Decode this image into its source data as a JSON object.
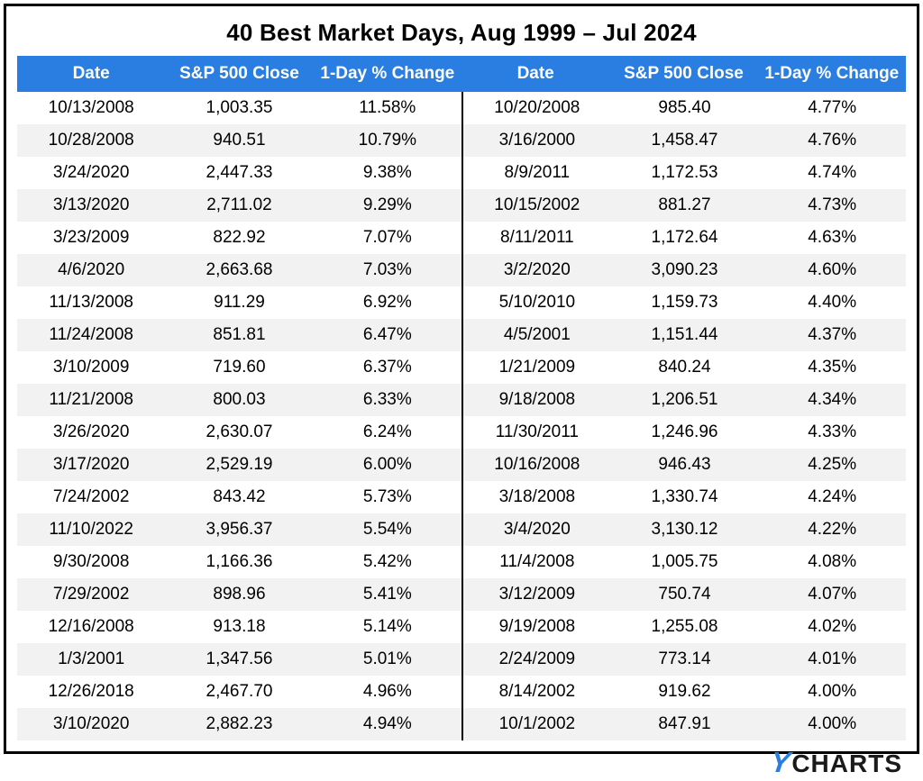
{
  "title": "40 Best Market Days, Aug 1999 – Jul 2024",
  "colors": {
    "header_bg": "#2a7de1",
    "header_text": "#ffffff",
    "row_alt_bg": "#f2f2f2",
    "row_bg": "#ffffff",
    "text": "#000000",
    "border": "#000000",
    "logo_accent": "#2a7de1",
    "logo_text": "#1a1a1a"
  },
  "font": {
    "title_size_pt": 20,
    "header_size_pt": 14,
    "cell_size_pt": 14,
    "weight_title": 700,
    "weight_header": 700,
    "weight_cell": 400
  },
  "columns": [
    "Date",
    "S&P 500 Close",
    "1-Day % Change",
    "Date",
    "S&P 500 Close",
    "1-Day % Change"
  ],
  "left_rows": [
    {
      "date": "10/13/2008",
      "close": "1,003.35",
      "change": "11.58%"
    },
    {
      "date": "10/28/2008",
      "close": "940.51",
      "change": "10.79%"
    },
    {
      "date": "3/24/2020",
      "close": "2,447.33",
      "change": "9.38%"
    },
    {
      "date": "3/13/2020",
      "close": "2,711.02",
      "change": "9.29%"
    },
    {
      "date": "3/23/2009",
      "close": "822.92",
      "change": "7.07%"
    },
    {
      "date": "4/6/2020",
      "close": "2,663.68",
      "change": "7.03%"
    },
    {
      "date": "11/13/2008",
      "close": "911.29",
      "change": "6.92%"
    },
    {
      "date": "11/24/2008",
      "close": "851.81",
      "change": "6.47%"
    },
    {
      "date": "3/10/2009",
      "close": "719.60",
      "change": "6.37%"
    },
    {
      "date": "11/21/2008",
      "close": "800.03",
      "change": "6.33%"
    },
    {
      "date": "3/26/2020",
      "close": "2,630.07",
      "change": "6.24%"
    },
    {
      "date": "3/17/2020",
      "close": "2,529.19",
      "change": "6.00%"
    },
    {
      "date": "7/24/2002",
      "close": "843.42",
      "change": "5.73%"
    },
    {
      "date": "11/10/2022",
      "close": "3,956.37",
      "change": "5.54%"
    },
    {
      "date": "9/30/2008",
      "close": "1,166.36",
      "change": "5.42%"
    },
    {
      "date": "7/29/2002",
      "close": "898.96",
      "change": "5.41%"
    },
    {
      "date": "12/16/2008",
      "close": "913.18",
      "change": "5.14%"
    },
    {
      "date": "1/3/2001",
      "close": "1,347.56",
      "change": "5.01%"
    },
    {
      "date": "12/26/2018",
      "close": "2,467.70",
      "change": "4.96%"
    },
    {
      "date": "3/10/2020",
      "close": "2,882.23",
      "change": "4.94%"
    }
  ],
  "right_rows": [
    {
      "date": "10/20/2008",
      "close": "985.40",
      "change": "4.77%"
    },
    {
      "date": "3/16/2000",
      "close": "1,458.47",
      "change": "4.76%"
    },
    {
      "date": "8/9/2011",
      "close": "1,172.53",
      "change": "4.74%"
    },
    {
      "date": "10/15/2002",
      "close": "881.27",
      "change": "4.73%"
    },
    {
      "date": "8/11/2011",
      "close": "1,172.64",
      "change": "4.63%"
    },
    {
      "date": "3/2/2020",
      "close": "3,090.23",
      "change": "4.60%"
    },
    {
      "date": "5/10/2010",
      "close": "1,159.73",
      "change": "4.40%"
    },
    {
      "date": "4/5/2001",
      "close": "1,151.44",
      "change": "4.37%"
    },
    {
      "date": "1/21/2009",
      "close": "840.24",
      "change": "4.35%"
    },
    {
      "date": "9/18/2008",
      "close": "1,206.51",
      "change": "4.34%"
    },
    {
      "date": "11/30/2011",
      "close": "1,246.96",
      "change": "4.33%"
    },
    {
      "date": "10/16/2008",
      "close": "946.43",
      "change": "4.25%"
    },
    {
      "date": "3/18/2008",
      "close": "1,330.74",
      "change": "4.24%"
    },
    {
      "date": "3/4/2020",
      "close": "3,130.12",
      "change": "4.22%"
    },
    {
      "date": "11/4/2008",
      "close": "1,005.75",
      "change": "4.08%"
    },
    {
      "date": "3/12/2009",
      "close": "750.74",
      "change": "4.07%"
    },
    {
      "date": "9/19/2008",
      "close": "1,255.08",
      "change": "4.02%"
    },
    {
      "date": "2/24/2009",
      "close": "773.14",
      "change": "4.01%"
    },
    {
      "date": "8/14/2002",
      "close": "919.62",
      "change": "4.00%"
    },
    {
      "date": "10/1/2002",
      "close": "847.91",
      "change": "4.00%"
    }
  ],
  "logo": {
    "accent": "Y",
    "rest": "CHARTS"
  }
}
